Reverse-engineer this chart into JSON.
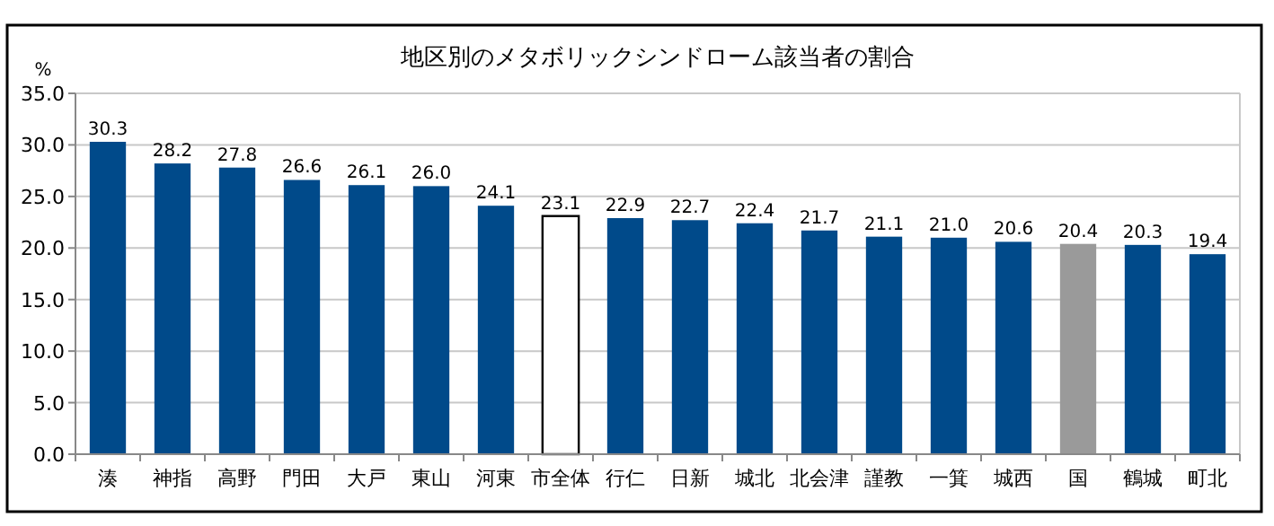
{
  "chart_data": {
    "type": "bar",
    "title": "地区別のメタボリックシンドローム該当者の割合",
    "ylabel": "%",
    "categories": [
      "湊",
      "神指",
      "高野",
      "門田",
      "大戸",
      "東山",
      "河東",
      "市全体",
      "行仁",
      "日新",
      "城北",
      "北会津",
      "謹教",
      "一箕",
      "城西",
      "国",
      "鶴城",
      "町北"
    ],
    "values": [
      30.3,
      28.2,
      27.8,
      26.6,
      26.1,
      26.0,
      24.1,
      23.1,
      22.9,
      22.7,
      22.4,
      21.7,
      21.1,
      21.0,
      20.6,
      20.4,
      20.3,
      19.4
    ],
    "value_labels": [
      "30.3",
      "28.2",
      "27.8",
      "26.6",
      "26.1",
      "26.0",
      "24.1",
      "23.1",
      "22.9",
      "22.7",
      "22.4",
      "21.7",
      "21.1",
      "21.0",
      "20.6",
      "20.4",
      "20.3",
      "19.4"
    ],
    "colors": [
      "#004a8a",
      "#004a8a",
      "#004a8a",
      "#004a8a",
      "#004a8a",
      "#004a8a",
      "#004a8a",
      "#ffffff",
      "#004a8a",
      "#004a8a",
      "#004a8a",
      "#004a8a",
      "#004a8a",
      "#004a8a",
      "#004a8a",
      "#9a9a9a",
      "#004a8a",
      "#004a8a"
    ],
    "ylim": [
      0,
      35
    ],
    "yticks": [
      {
        "value": 0,
        "label": "0.0"
      },
      {
        "value": 5,
        "label": "5.0"
      },
      {
        "value": 10,
        "label": "10.0"
      },
      {
        "value": 15,
        "label": "15.0"
      },
      {
        "value": 20,
        "label": "20.0"
      },
      {
        "value": 25,
        "label": "25.0"
      },
      {
        "value": 30,
        "label": "30.0"
      },
      {
        "value": 35,
        "label": "35.0"
      }
    ],
    "grid": "y"
  }
}
